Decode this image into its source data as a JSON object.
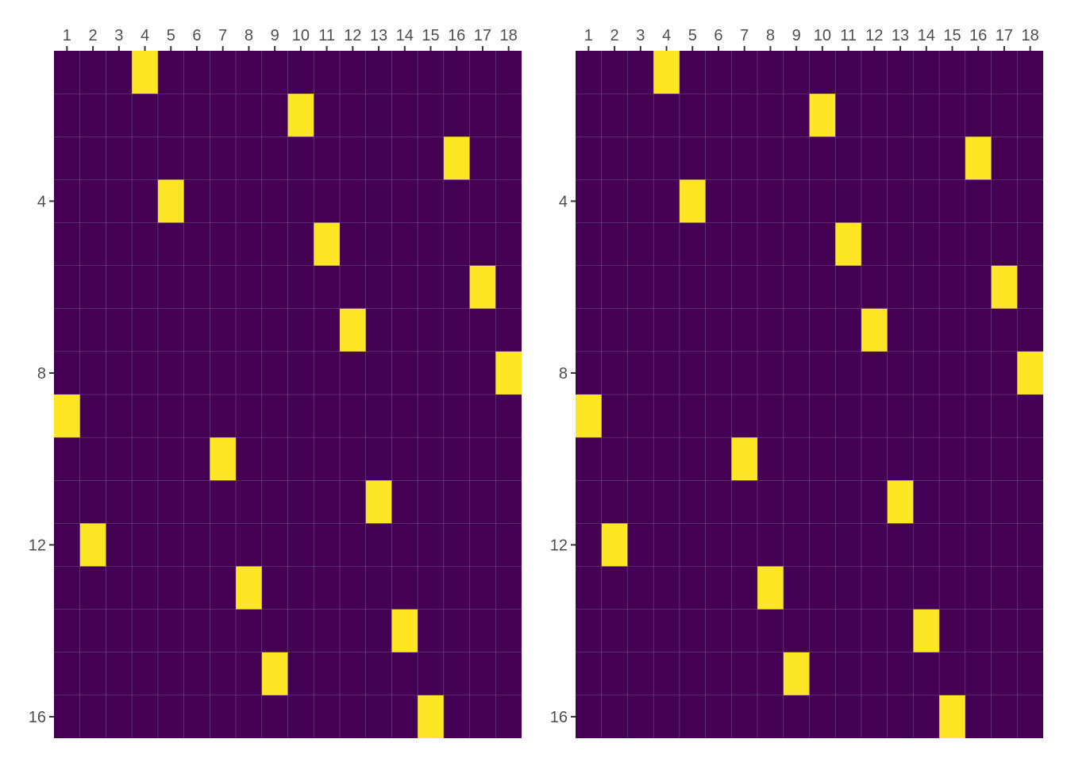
{
  "chart_data": [
    {
      "type": "heatmap",
      "title": "",
      "xlabel": "",
      "ylabel": "",
      "x_categories": [
        1,
        2,
        3,
        4,
        5,
        6,
        7,
        8,
        9,
        10,
        11,
        12,
        13,
        14,
        15,
        16,
        17,
        18
      ],
      "x_axis_position": "top",
      "y_rows": [
        1,
        2,
        3,
        4,
        5,
        6,
        7,
        8,
        9,
        10,
        11,
        12,
        13,
        14,
        15,
        16
      ],
      "y_tick_labels": [
        4,
        8,
        12,
        16
      ],
      "values": [
        0,
        1
      ],
      "highlighted_cells": [
        {
          "row": 1,
          "col": 4
        },
        {
          "row": 2,
          "col": 10
        },
        {
          "row": 3,
          "col": 16
        },
        {
          "row": 4,
          "col": 5
        },
        {
          "row": 5,
          "col": 11
        },
        {
          "row": 6,
          "col": 17
        },
        {
          "row": 7,
          "col": 12
        },
        {
          "row": 8,
          "col": 18
        },
        {
          "row": 9,
          "col": 1
        },
        {
          "row": 10,
          "col": 7
        },
        {
          "row": 11,
          "col": 13
        },
        {
          "row": 12,
          "col": 2
        },
        {
          "row": 13,
          "col": 8
        },
        {
          "row": 14,
          "col": 14
        },
        {
          "row": 15,
          "col": 9
        },
        {
          "row": 16,
          "col": 15
        }
      ],
      "colors": {
        "low": "#440154",
        "high": "#fde725"
      },
      "grid": true,
      "legend": "none"
    },
    {
      "type": "heatmap",
      "title": "",
      "xlabel": "",
      "ylabel": "",
      "x_categories": [
        1,
        2,
        3,
        4,
        5,
        6,
        7,
        8,
        9,
        10,
        11,
        12,
        13,
        14,
        15,
        16,
        17,
        18
      ],
      "x_axis_position": "top",
      "y_rows": [
        1,
        2,
        3,
        4,
        5,
        6,
        7,
        8,
        9,
        10,
        11,
        12,
        13,
        14,
        15,
        16
      ],
      "y_tick_labels": [
        4,
        8,
        12,
        16
      ],
      "values": [
        0,
        1
      ],
      "highlighted_cells": [
        {
          "row": 1,
          "col": 4
        },
        {
          "row": 2,
          "col": 10
        },
        {
          "row": 3,
          "col": 16
        },
        {
          "row": 4,
          "col": 5
        },
        {
          "row": 5,
          "col": 11
        },
        {
          "row": 6,
          "col": 17
        },
        {
          "row": 7,
          "col": 12
        },
        {
          "row": 8,
          "col": 18
        },
        {
          "row": 9,
          "col": 1
        },
        {
          "row": 10,
          "col": 7
        },
        {
          "row": 11,
          "col": 13
        },
        {
          "row": 12,
          "col": 2
        },
        {
          "row": 13,
          "col": 8
        },
        {
          "row": 14,
          "col": 14
        },
        {
          "row": 15,
          "col": 9
        },
        {
          "row": 16,
          "col": 15
        }
      ],
      "colors": {
        "low": "#440154",
        "high": "#fde725"
      },
      "grid": true,
      "legend": "none"
    }
  ]
}
